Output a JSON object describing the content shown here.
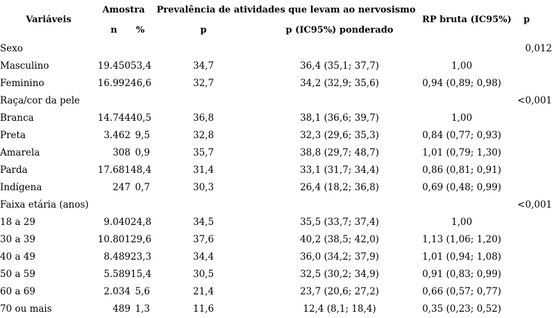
{
  "colors": {
    "text": "#000000",
    "background": "#ffffff"
  },
  "table": {
    "headers": {
      "variaveis": "Variáveis",
      "amostra": "Amostra",
      "n": "n",
      "pct": "%",
      "prevalencia": "Prevalência de atividades que levam ao nervosismo",
      "p": "p",
      "p_ic95": "p (IC95%) ponderado",
      "rp_bruta": "RP bruta (IC95%)",
      "p_value": "p"
    },
    "rows": [
      {
        "section": true,
        "label": "Sexo",
        "n": "",
        "pct": "",
        "p": "",
        "p_ic95": "",
        "rp": "",
        "p_value": "0,012"
      },
      {
        "section": false,
        "label": "Masculino",
        "n": "19.450",
        "pct": "53,4",
        "p": "34,7",
        "p_ic95": "36,4 (35,1; 37,7)",
        "rp": "1,00",
        "p_value": ""
      },
      {
        "section": false,
        "label": "Feminino",
        "n": "16.992",
        "pct": "46,6",
        "p": "32,7",
        "p_ic95": "34,2 (32,9; 35,6)",
        "rp": "0,94 (0,89; 0,98)",
        "p_value": ""
      },
      {
        "section": true,
        "label": "Raça/cor da pele",
        "n": "",
        "pct": "",
        "p": "",
        "p_ic95": "",
        "rp": "",
        "p_value": "<0,001"
      },
      {
        "section": false,
        "label": "Branca",
        "n": "14.744",
        "pct": "40,5",
        "p": "36,8",
        "p_ic95": "38,1 (36,6; 39,7)",
        "rp": "1,00",
        "p_value": ""
      },
      {
        "section": false,
        "label": "Preta",
        "n": "3.462",
        "pct": "9,5",
        "p": "32,8",
        "p_ic95": "32,3 (29,6; 35,3)",
        "rp": "0,84 (0,77; 0,93)",
        "p_value": ""
      },
      {
        "section": false,
        "label": "Amarela",
        "n": "308",
        "pct": "0,9",
        "p": "35,7",
        "p_ic95": "38,8 (29,7; 48,7)",
        "rp": "1,01 (0,79; 1,30)",
        "p_value": ""
      },
      {
        "section": false,
        "label": "Parda",
        "n": "17.681",
        "pct": "48,4",
        "p": "31,4",
        "p_ic95": "33,1 (31,7; 34,4)",
        "rp": "0,86 (0,81; 0,91)",
        "p_value": ""
      },
      {
        "section": false,
        "label": "Indígena",
        "n": "247",
        "pct": "0,7",
        "p": "30,3",
        "p_ic95": "26,4 (18,2; 36,8)",
        "rp": "0,69 (0,48; 0,99)",
        "p_value": ""
      },
      {
        "section": true,
        "label": "Faixa etária (anos)",
        "n": "",
        "pct": "",
        "p": "",
        "p_ic95": "",
        "rp": "",
        "p_value": "<0,001"
      },
      {
        "section": false,
        "label": "18 a 29",
        "n": "9.040",
        "pct": "24,8",
        "p": "34,5",
        "p_ic95": "35,5 (33,7; 37,4)",
        "rp": "1,00",
        "p_value": ""
      },
      {
        "section": false,
        "label": "30 a 39",
        "n": "10.801",
        "pct": "29,6",
        "p": "37,6",
        "p_ic95": "40,2 (38,5; 42,0)",
        "rp": "1,13 (1,06; 1,20)",
        "p_value": ""
      },
      {
        "section": false,
        "label": "40 a 49",
        "n": "8.489",
        "pct": "23,3",
        "p": "34,4",
        "p_ic95": "36,0 (34,2; 37,9)",
        "rp": "1,01 (0,94; 1,08)",
        "p_value": ""
      },
      {
        "section": false,
        "label": "50 a 59",
        "n": "5.589",
        "pct": "15,4",
        "p": "30,5",
        "p_ic95": "32,5 (30,2; 34,9)",
        "rp": "0,91 (0,83; 0,99)",
        "p_value": ""
      },
      {
        "section": false,
        "label": "60 a 69",
        "n": "2.034",
        "pct": "5,6",
        "p": "21,4",
        "p_ic95": "23,7 (20,6; 27,2)",
        "rp": "0,66 (0,57; 0,77)",
        "p_value": ""
      },
      {
        "section": false,
        "label": "70 ou mais",
        "n": "489",
        "pct": "1,3",
        "p": "11,6",
        "p_ic95": "12,4 (8,1; 18,4)",
        "rp": "0,35 (0,23; 0,52)",
        "p_value": ""
      }
    ]
  }
}
